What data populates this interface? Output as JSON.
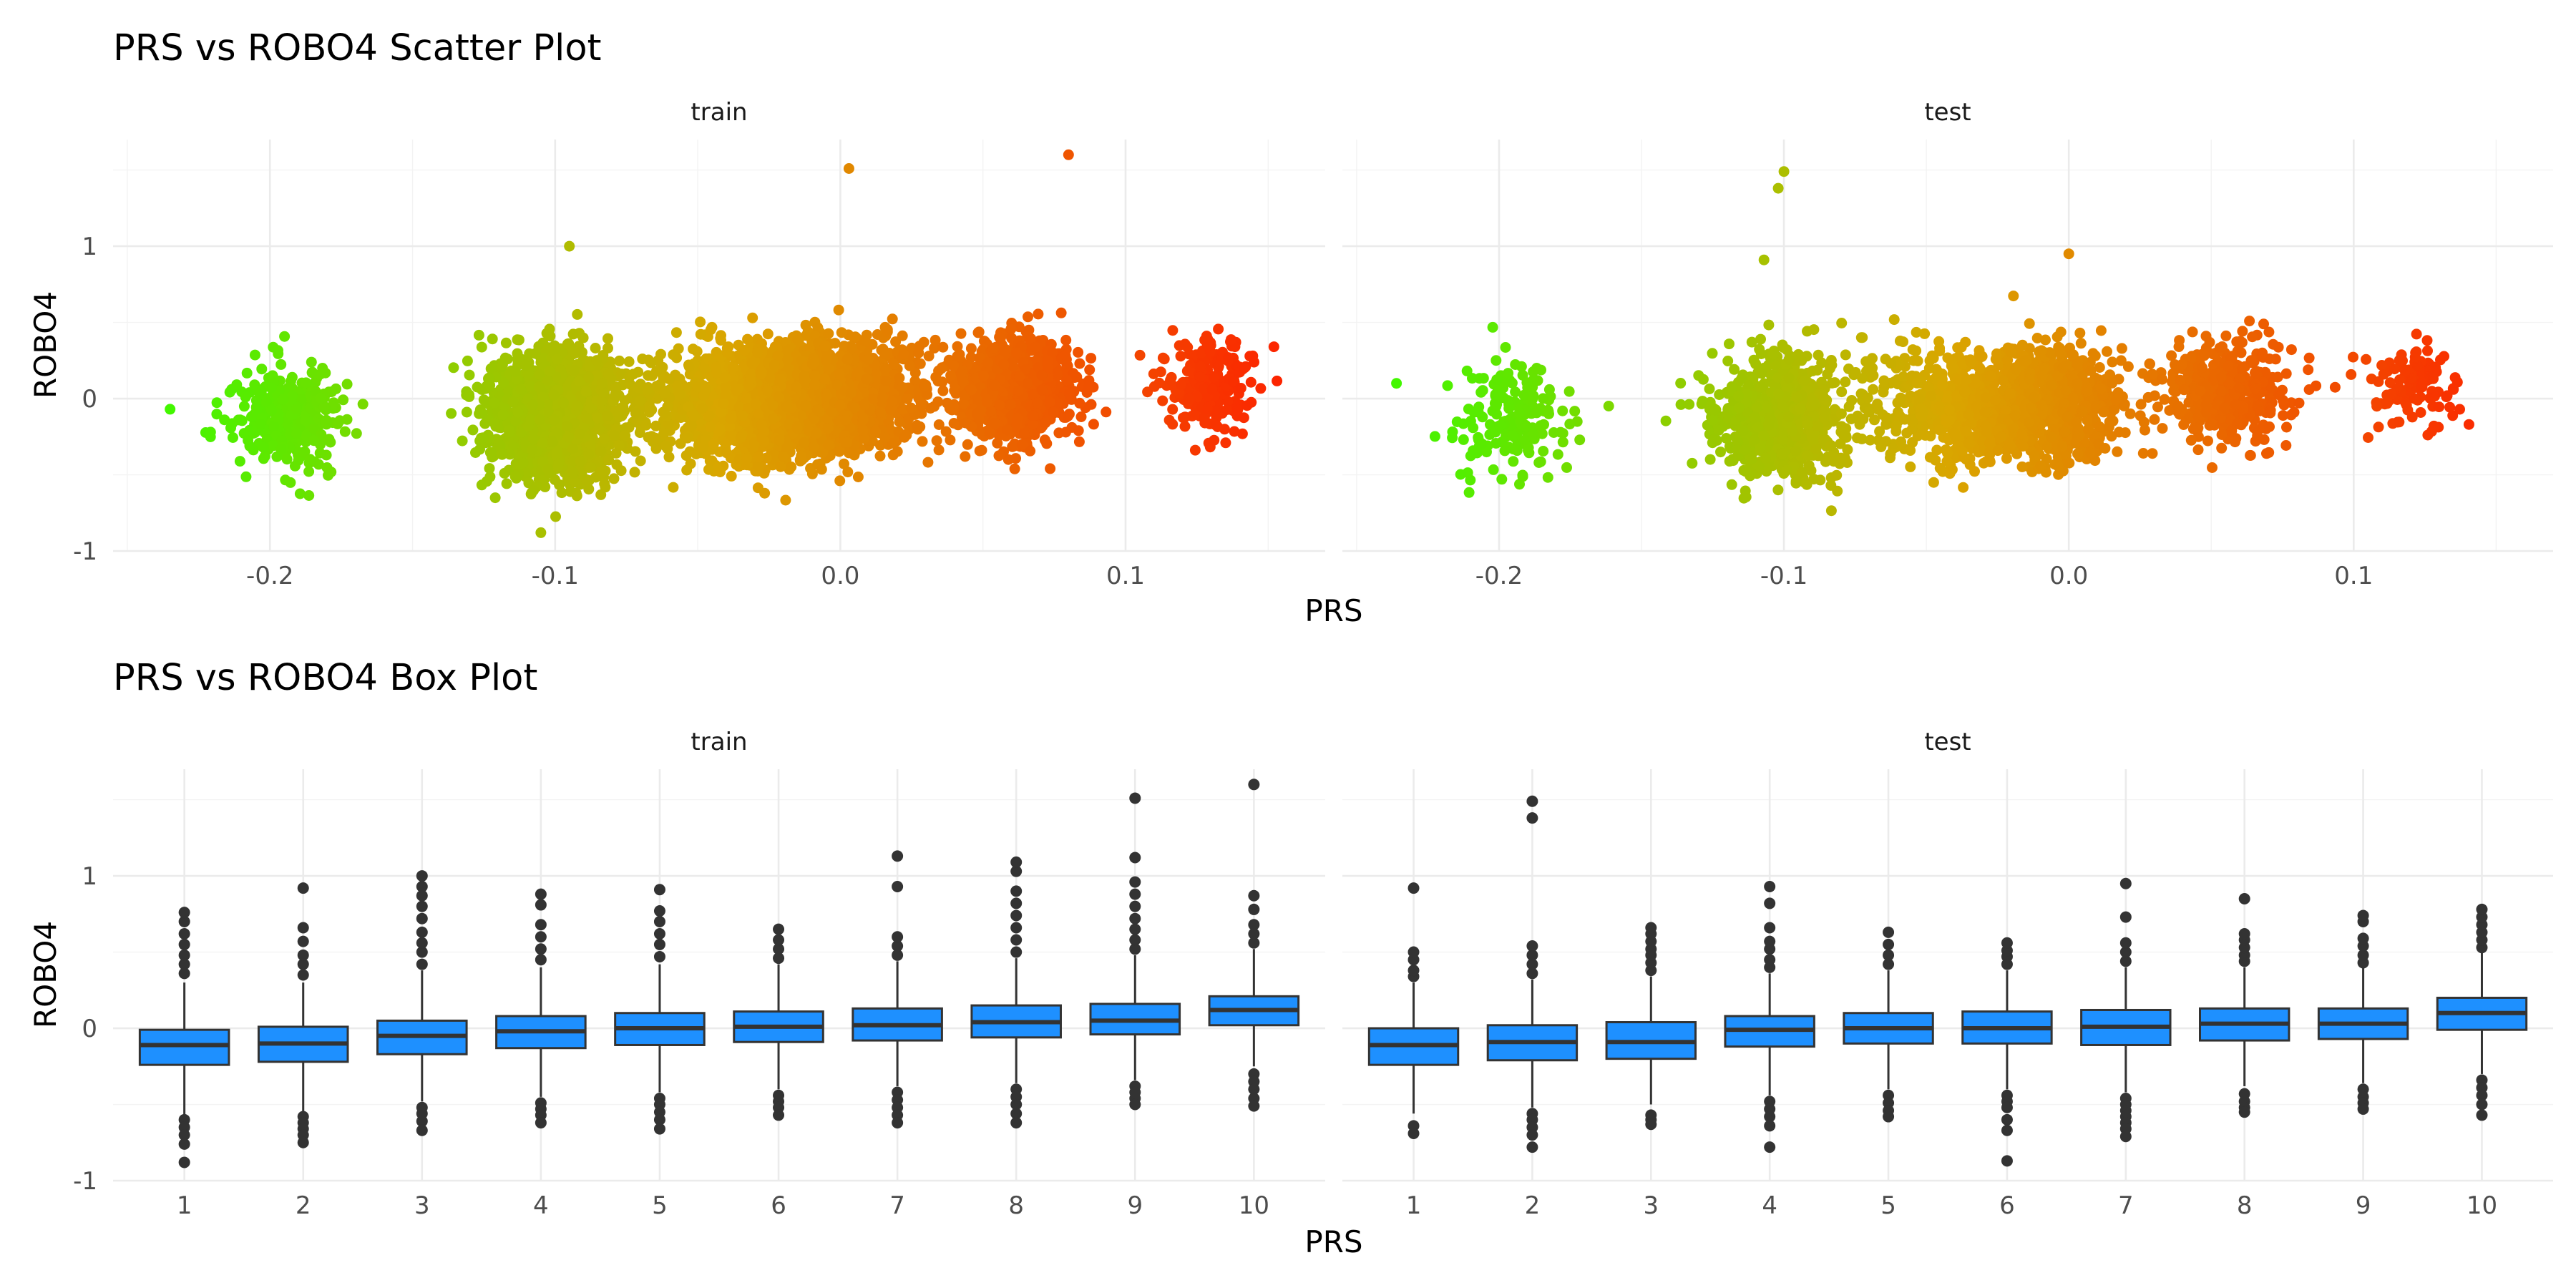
{
  "figure": {
    "section_titles": [
      "PRS vs ROBO4 Scatter Plot",
      "PRS vs ROBO4 Box Plot"
    ],
    "facets": [
      "train",
      "test"
    ],
    "x_axis_title": "PRS",
    "y_axis_title": "ROBO4"
  },
  "colors": {
    "low": "#33ff00",
    "mid": "#d9a600",
    "high": "#ff1a00",
    "box_fill": "#1e90ff",
    "box_line": "#333333",
    "grid": "#ebebeb"
  },
  "chart_data": [
    {
      "type": "scatter",
      "title": "PRS vs ROBO4 Scatter Plot",
      "xlabel": "PRS",
      "ylabel": "ROBO4",
      "xlim": [
        -0.255,
        0.17
      ],
      "ylim": [
        -1.0,
        1.7
      ],
      "x_ticks": [
        -0.2,
        -0.1,
        0.0,
        0.1
      ],
      "x_tick_labels": [
        "-0.2",
        "-0.1",
        "0.0",
        "0.1"
      ],
      "y_ticks": [
        -1,
        0,
        1
      ],
      "y_tick_labels": [
        "-1",
        "0",
        "1"
      ],
      "grid": true,
      "legend": "none",
      "color_by": "PRS",
      "panels": [
        {
          "name": "train",
          "clusters": [
            {
              "x": -0.195,
              "y": -0.12,
              "sx": 0.01,
              "sy": 0.17,
              "n": 380
            },
            {
              "x": -0.1,
              "y": -0.1,
              "sx": 0.012,
              "sy": 0.2,
              "n": 1500
            },
            {
              "x": -0.03,
              "y": -0.04,
              "sx": 0.017,
              "sy": 0.18,
              "n": 1500
            },
            {
              "x": 0.0,
              "y": 0.02,
              "sx": 0.014,
              "sy": 0.18,
              "n": 1100
            },
            {
              "x": 0.06,
              "y": 0.06,
              "sx": 0.011,
              "sy": 0.17,
              "n": 900
            },
            {
              "x": 0.13,
              "y": 0.1,
              "sx": 0.008,
              "sy": 0.15,
              "n": 220
            }
          ],
          "notable_points": [
            [
              0.003,
              1.51
            ],
            [
              0.08,
              1.6
            ],
            [
              -0.095,
              1.0
            ],
            [
              0.152,
              0.34
            ],
            [
              -0.105,
              -0.88
            ],
            [
              -0.235,
              -0.07
            ]
          ]
        },
        {
          "name": "test",
          "clusters": [
            {
              "x": -0.195,
              "y": -0.12,
              "sx": 0.01,
              "sy": 0.17,
              "n": 180
            },
            {
              "x": -0.1,
              "y": -0.12,
              "sx": 0.012,
              "sy": 0.2,
              "n": 750
            },
            {
              "x": -0.035,
              "y": -0.04,
              "sx": 0.016,
              "sy": 0.18,
              "n": 650
            },
            {
              "x": -0.005,
              "y": -0.01,
              "sx": 0.012,
              "sy": 0.18,
              "n": 550
            },
            {
              "x": 0.055,
              "y": 0.05,
              "sx": 0.011,
              "sy": 0.17,
              "n": 450
            },
            {
              "x": 0.12,
              "y": 0.08,
              "sx": 0.008,
              "sy": 0.15,
              "n": 110
            }
          ],
          "notable_points": [
            [
              -0.1,
              1.49
            ],
            [
              -0.102,
              1.38
            ],
            [
              -0.107,
              0.91
            ],
            [
              0.0,
              0.95
            ],
            [
              -0.236,
              0.1
            ],
            [
              0.135,
              0.06
            ]
          ]
        }
      ]
    },
    {
      "type": "box",
      "title": "PRS vs ROBO4 Box Plot",
      "xlabel": "PRS",
      "ylabel": "ROBO4",
      "categories": [
        "1",
        "2",
        "3",
        "4",
        "5",
        "6",
        "7",
        "8",
        "9",
        "10"
      ],
      "ylim": [
        -1.0,
        1.7
      ],
      "y_ticks": [
        -1,
        0,
        1
      ],
      "y_tick_labels": [
        "-1",
        "0",
        "1"
      ],
      "grid": true,
      "fill": "#1e90ff",
      "panels": [
        {
          "name": "train",
          "boxes": [
            {
              "q1": -0.24,
              "median": -0.11,
              "q3": -0.01,
              "low": -0.58,
              "high": 0.3,
              "outliers": [
                -0.6,
                -0.65,
                -0.7,
                -0.76,
                -0.88,
                0.36,
                0.42,
                0.48,
                0.55,
                0.62,
                0.7,
                0.76
              ]
            },
            {
              "q1": -0.22,
              "median": -0.1,
              "q3": 0.01,
              "low": -0.55,
              "high": 0.3,
              "outliers": [
                -0.58,
                -0.62,
                -0.66,
                -0.7,
                -0.75,
                0.35,
                0.42,
                0.48,
                0.57,
                0.66,
                0.92
              ]
            },
            {
              "q1": -0.17,
              "median": -0.05,
              "q3": 0.05,
              "low": -0.48,
              "high": 0.38,
              "outliers": [
                -0.52,
                -0.56,
                -0.61,
                -0.67,
                0.42,
                0.5,
                0.56,
                0.63,
                0.72,
                0.8,
                0.87,
                0.93,
                1.0
              ]
            },
            {
              "q1": -0.13,
              "median": -0.02,
              "q3": 0.08,
              "low": -0.45,
              "high": 0.4,
              "outliers": [
                -0.49,
                -0.53,
                -0.57,
                -0.62,
                0.45,
                0.52,
                0.6,
                0.68,
                0.81,
                0.88
              ]
            },
            {
              "q1": -0.11,
              "median": 0.0,
              "q3": 0.1,
              "low": -0.42,
              "high": 0.42,
              "outliers": [
                -0.46,
                -0.5,
                -0.55,
                -0.6,
                -0.66,
                0.47,
                0.55,
                0.62,
                0.7,
                0.77,
                0.91
              ]
            },
            {
              "q1": -0.09,
              "median": 0.01,
              "q3": 0.11,
              "low": -0.4,
              "high": 0.42,
              "outliers": [
                -0.44,
                -0.48,
                -0.52,
                -0.57,
                0.46,
                0.52,
                0.58,
                0.65
              ]
            },
            {
              "q1": -0.08,
              "median": 0.02,
              "q3": 0.13,
              "low": -0.38,
              "high": 0.44,
              "outliers": [
                -0.42,
                -0.47,
                -0.52,
                -0.57,
                -0.62,
                0.48,
                0.54,
                0.6,
                0.93,
                1.13
              ]
            },
            {
              "q1": -0.06,
              "median": 0.04,
              "q3": 0.15,
              "low": -0.36,
              "high": 0.46,
              "outliers": [
                -0.4,
                -0.45,
                -0.5,
                -0.56,
                -0.62,
                0.5,
                0.58,
                0.66,
                0.74,
                0.82,
                0.9,
                1.03,
                1.09
              ]
            },
            {
              "q1": -0.04,
              "median": 0.05,
              "q3": 0.16,
              "low": -0.34,
              "high": 0.48,
              "outliers": [
                -0.38,
                -0.42,
                -0.46,
                -0.5,
                0.52,
                0.58,
                0.65,
                0.72,
                0.8,
                0.88,
                0.96,
                1.12,
                1.51
              ]
            },
            {
              "q1": 0.02,
              "median": 0.12,
              "q3": 0.21,
              "low": -0.25,
              "high": 0.52,
              "outliers": [
                -0.3,
                -0.35,
                -0.4,
                -0.46,
                -0.51,
                0.56,
                0.62,
                0.68,
                0.78,
                0.87,
                1.6
              ]
            }
          ]
        },
        {
          "name": "test",
          "boxes": [
            {
              "q1": -0.24,
              "median": -0.11,
              "q3": 0.0,
              "low": -0.56,
              "high": 0.3,
              "outliers": [
                -0.64,
                -0.69,
                0.34,
                0.38,
                0.45,
                0.5,
                0.92
              ]
            },
            {
              "q1": -0.21,
              "median": -0.09,
              "q3": 0.02,
              "low": -0.52,
              "high": 0.32,
              "outliers": [
                -0.56,
                -0.6,
                -0.65,
                -0.7,
                -0.78,
                0.36,
                0.42,
                0.48,
                0.54,
                1.38,
                1.49
              ]
            },
            {
              "q1": -0.2,
              "median": -0.09,
              "q3": 0.04,
              "low": -0.5,
              "high": 0.34,
              "outliers": [
                -0.57,
                -0.6,
                -0.63,
                0.38,
                0.43,
                0.48,
                0.52,
                0.57,
                0.62,
                0.66
              ]
            },
            {
              "q1": -0.12,
              "median": -0.01,
              "q3": 0.08,
              "low": -0.44,
              "high": 0.36,
              "outliers": [
                -0.48,
                -0.53,
                -0.58,
                -0.64,
                -0.78,
                0.4,
                0.45,
                0.52,
                0.57,
                0.66,
                0.82,
                0.93
              ]
            },
            {
              "q1": -0.1,
              "median": 0.0,
              "q3": 0.1,
              "low": -0.4,
              "high": 0.38,
              "outliers": [
                -0.44,
                -0.49,
                -0.54,
                -0.58,
                0.42,
                0.48,
                0.55,
                0.63
              ]
            },
            {
              "q1": -0.1,
              "median": 0.0,
              "q3": 0.11,
              "low": -0.4,
              "high": 0.38,
              "outliers": [
                -0.44,
                -0.48,
                -0.52,
                -0.6,
                -0.67,
                -0.87,
                0.42,
                0.47,
                0.51,
                0.56
              ]
            },
            {
              "q1": -0.11,
              "median": 0.01,
              "q3": 0.12,
              "low": -0.42,
              "high": 0.4,
              "outliers": [
                -0.46,
                -0.5,
                -0.54,
                -0.58,
                -0.62,
                -0.66,
                -0.71,
                0.44,
                0.5,
                0.56,
                0.73,
                0.95
              ]
            },
            {
              "q1": -0.08,
              "median": 0.03,
              "q3": 0.13,
              "low": -0.38,
              "high": 0.4,
              "outliers": [
                -0.43,
                -0.48,
                -0.52,
                -0.55,
                0.44,
                0.48,
                0.53,
                0.58,
                0.62,
                0.85
              ]
            },
            {
              "q1": -0.07,
              "median": 0.03,
              "q3": 0.13,
              "low": -0.36,
              "high": 0.4,
              "outliers": [
                -0.4,
                -0.45,
                -0.49,
                -0.53,
                0.43,
                0.48,
                0.54,
                0.59,
                0.7,
                0.74
              ]
            },
            {
              "q1": -0.01,
              "median": 0.1,
              "q3": 0.2,
              "low": -0.3,
              "high": 0.5,
              "outliers": [
                -0.34,
                -0.39,
                -0.44,
                -0.5,
                -0.57,
                0.53,
                0.58,
                0.63,
                0.68,
                0.73,
                0.78
              ]
            }
          ]
        }
      ]
    }
  ]
}
